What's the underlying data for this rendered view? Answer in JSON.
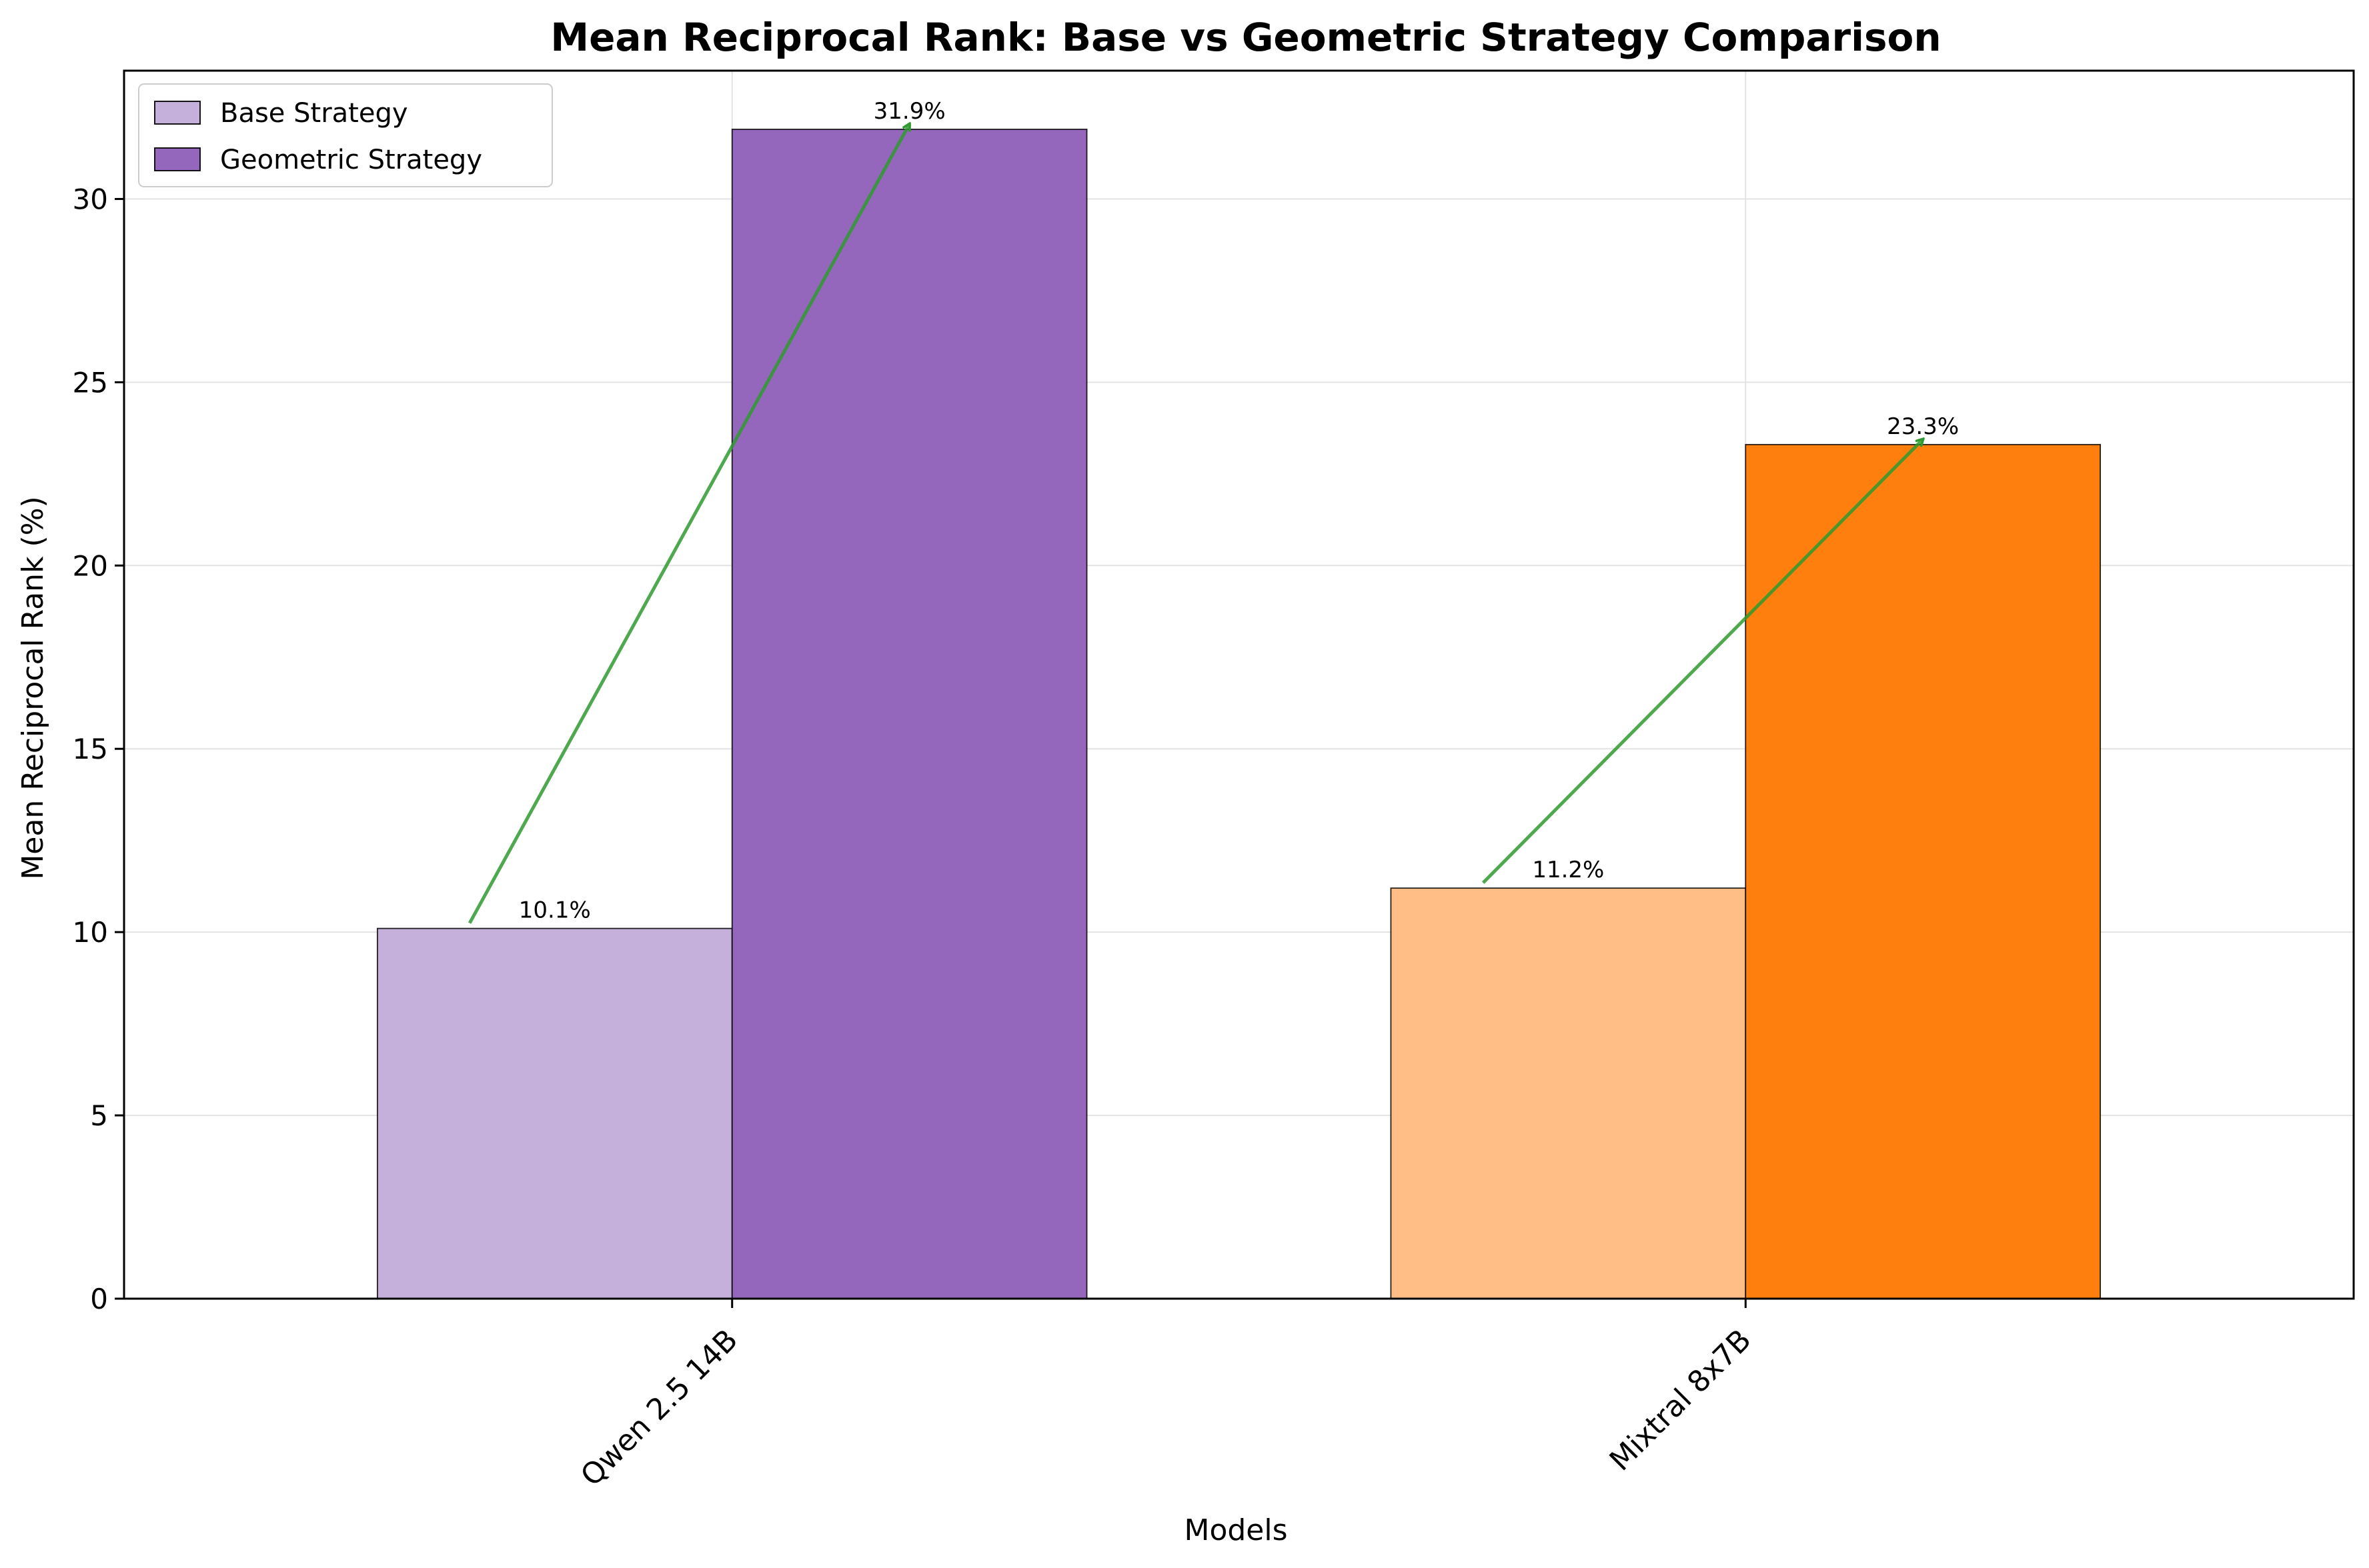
{
  "chart_data": {
    "type": "bar",
    "title": "Mean Reciprocal Rank: Base vs Geometric Strategy Comparison",
    "xlabel": "Models",
    "ylabel": "Mean Reciprocal Rank (%)",
    "categories": [
      "Qwen 2.5 14B",
      "Mixtral 8x7B"
    ],
    "ylim": [
      0,
      33.5
    ],
    "yticks": [
      0,
      5,
      10,
      15,
      20,
      25,
      30
    ],
    "grid": true,
    "legend_placement": "top-left",
    "series": [
      {
        "name": "Base Strategy",
        "values": [
          10.1,
          11.2
        ],
        "labels": [
          "10.1%",
          "11.2%"
        ],
        "colors": [
          "#c5b0dc",
          "#ffbe86"
        ],
        "legend_color": "#c5b0dc"
      },
      {
        "name": "Geometric Strategy",
        "values": [
          31.9,
          23.3
        ],
        "labels": [
          "31.9%",
          "23.3%"
        ],
        "colors": [
          "#9467bd",
          "#ff7f0e"
        ],
        "legend_color": "#9467bd"
      }
    ],
    "annotations": "green arrows from base bar top to geometric bar top for each model",
    "arrow_color": "#2f9a2f"
  }
}
